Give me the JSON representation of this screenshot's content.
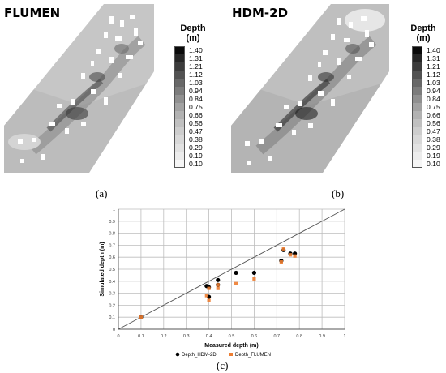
{
  "panels": {
    "a": {
      "title": "FLUMEN",
      "label": "(a)"
    },
    "b": {
      "title": "HDM-2D",
      "label": "(b)"
    },
    "c": {
      "label": "(c)"
    }
  },
  "legend": {
    "title_line1": "Depth",
    "title_line2": "(m)",
    "values": [
      "1.40",
      "1.31",
      "1.21",
      "1.12",
      "1.03",
      "0.94",
      "0.84",
      "0.75",
      "0.66",
      "0.56",
      "0.47",
      "0.38",
      "0.29",
      "0.19",
      "0.10"
    ],
    "colors": [
      "#0a0a0a",
      "#262626",
      "#3c3c3c",
      "#525252",
      "#686868",
      "#7c7c7c",
      "#909090",
      "#a2a2a2",
      "#b2b2b2",
      "#c0c0c0",
      "#cdcdcd",
      "#d8d8d8",
      "#e2e2e2",
      "#ececec",
      "#f6f6f6"
    ]
  },
  "chart_data": {
    "type": "scatter",
    "xlabel": "Measured depth (m)",
    "ylabel": "Simulated depth (m)",
    "xlim": [
      0,
      1
    ],
    "ylim": [
      0,
      1
    ],
    "xticks": [
      "0",
      "0.1",
      "0.2",
      "0.3",
      "0.4",
      "0.5",
      "0.6",
      "0.7",
      "0.8",
      "0.9",
      "1"
    ],
    "yticks": [
      "0",
      "0.1",
      "0.2",
      "0.3",
      "0.4",
      "0.5",
      "0.6",
      "0.7",
      "0.8",
      "0.9",
      "1"
    ],
    "grid": true,
    "reference_line": "1:1",
    "legend_position": "bottom",
    "series": [
      {
        "name": "Depth_HDM-2D",
        "color": "#000000",
        "marker": "circle",
        "x": [
          0.1,
          0.39,
          0.4,
          0.4,
          0.44,
          0.44,
          0.52,
          0.6,
          0.72,
          0.73,
          0.76,
          0.78
        ],
        "y": [
          0.1,
          0.36,
          0.35,
          0.27,
          0.41,
          0.37,
          0.47,
          0.47,
          0.57,
          0.66,
          0.63,
          0.63
        ]
      },
      {
        "name": "Depth_FLUMEN",
        "color": "#ED7D31",
        "marker": "square",
        "x": [
          0.1,
          0.39,
          0.4,
          0.4,
          0.44,
          0.44,
          0.52,
          0.6,
          0.72,
          0.73,
          0.76,
          0.78
        ],
        "y": [
          0.1,
          0.28,
          0.34,
          0.24,
          0.34,
          0.37,
          0.38,
          0.42,
          0.56,
          0.67,
          0.62,
          0.61
        ]
      }
    ]
  }
}
